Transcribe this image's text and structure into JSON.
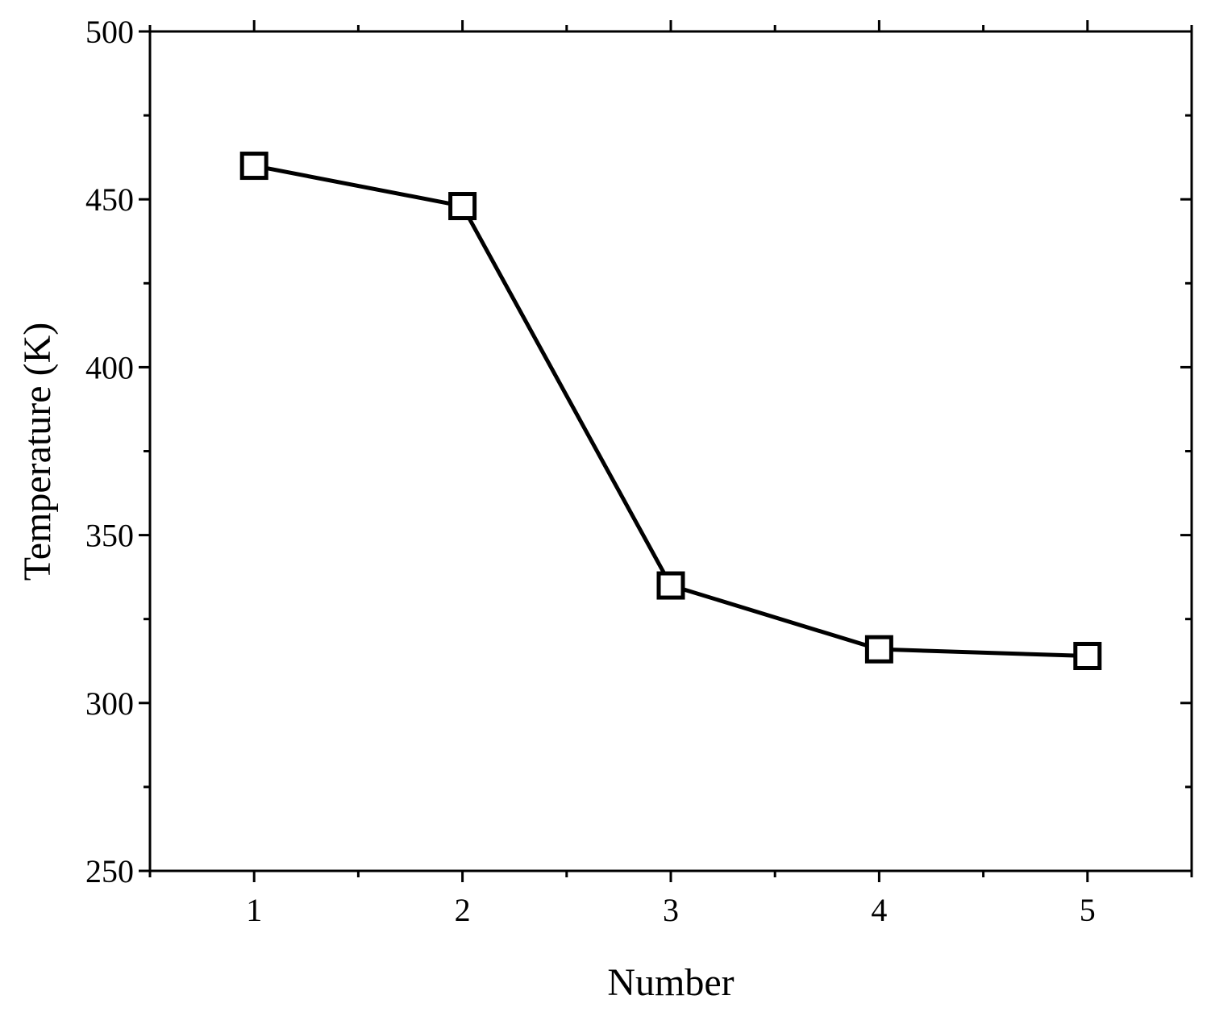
{
  "chart_data": {
    "type": "line",
    "title": "",
    "xlabel": "Number",
    "ylabel": "Temperature (K)",
    "xlim": [
      0.5,
      5.5
    ],
    "ylim": [
      250,
      500
    ],
    "xticks": [
      1,
      2,
      3,
      4,
      5
    ],
    "yticks": [
      250,
      300,
      350,
      400,
      450,
      500
    ],
    "grid": false,
    "legend": "none",
    "series": [
      {
        "x": [
          1,
          2,
          3,
          4,
          5
        ],
        "values": [
          460,
          448,
          335,
          316,
          314
        ],
        "color": "#000000",
        "marker": "open-square"
      }
    ]
  }
}
